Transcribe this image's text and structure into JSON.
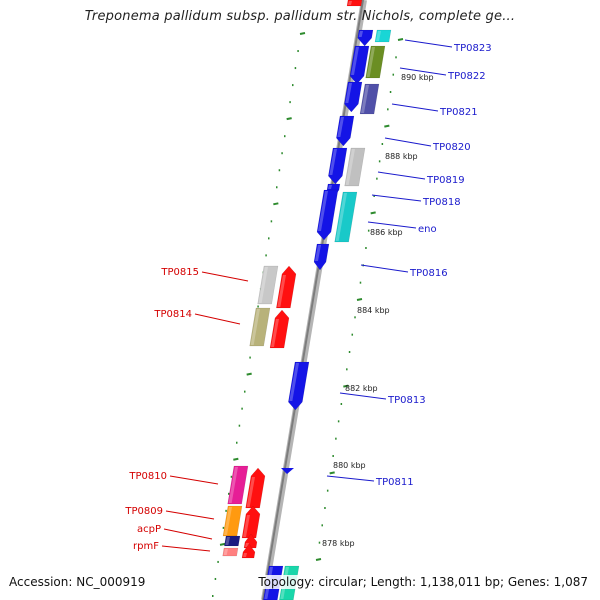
{
  "header": {
    "title": "Treponema pallidum subsp. pallidum str. Nichols, complete ge..."
  },
  "footer": {
    "accession": "Accession: NC_000919",
    "topology": "Topology: circular; Length: 1,138,011 bp; Genes: 1,087"
  },
  "colors": {
    "backbone": "#8a8a8a",
    "forward_label": "#1a1acc",
    "reverse_label": "#d40000",
    "tick": "#2e8b2e"
  },
  "forward_genes": [
    {
      "label": "TP0823"
    },
    {
      "label": "TP0822"
    },
    {
      "label": "TP0821"
    },
    {
      "label": "TP0820"
    },
    {
      "label": "TP0819"
    },
    {
      "label": "TP0818"
    },
    {
      "label": "eno"
    },
    {
      "label": "TP0816"
    },
    {
      "label": "TP0813"
    },
    {
      "label": "TP0811"
    }
  ],
  "reverse_genes": [
    {
      "label": "TP0815"
    },
    {
      "label": "TP0814"
    },
    {
      "label": "TP0810"
    },
    {
      "label": "TP0809"
    },
    {
      "label": "acpP"
    },
    {
      "label": "rpmF"
    }
  ],
  "kbp_ticks": [
    {
      "label": "890 kbp"
    },
    {
      "label": "888 kbp"
    },
    {
      "label": "886 kbp"
    },
    {
      "label": "884 kbp"
    },
    {
      "label": "882 kbp"
    },
    {
      "label": "880 kbp"
    },
    {
      "label": "878 kbp"
    }
  ]
}
